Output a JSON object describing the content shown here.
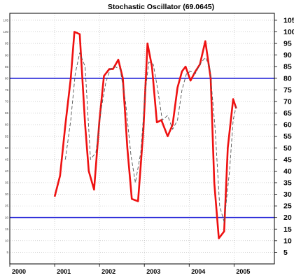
{
  "chart_data": {
    "type": "line",
    "title": "Stochastic Oscillator (69.0645)",
    "xlim": [
      2000.0,
      2005.9
    ],
    "ylim": [
      0,
      108
    ],
    "yticks": [
      5,
      10,
      15,
      20,
      25,
      30,
      35,
      40,
      45,
      50,
      55,
      60,
      65,
      70,
      75,
      80,
      85,
      90,
      95,
      100,
      105
    ],
    "xticks": [
      2000,
      2001,
      2002,
      2003,
      2004,
      2005
    ],
    "grid": true,
    "reference_lines": [
      {
        "value": 80,
        "color": "#1c1cd6"
      },
      {
        "value": 20,
        "color": "#1c1cd6"
      }
    ],
    "series": [
      {
        "style": "solid",
        "color": "#ee1111",
        "x": [
          2001.0,
          2001.12,
          2001.24,
          2001.36,
          2001.44,
          2001.56,
          2001.68,
          2001.76,
          2001.88,
          2002.0,
          2002.1,
          2002.22,
          2002.3,
          2002.42,
          2002.52,
          2002.62,
          2002.72,
          2002.86,
          2002.98,
          2003.07,
          2003.17,
          2003.28,
          2003.38,
          2003.52,
          2003.63,
          2003.74,
          2003.84,
          2003.92,
          2004.03,
          2004.14,
          2004.24,
          2004.36,
          2004.48,
          2004.56,
          2004.66,
          2004.78,
          2004.86,
          2004.98,
          2005.05
        ],
        "y": [
          29,
          38,
          60,
          80,
          100,
          99,
          60,
          40,
          32,
          62,
          81,
          84,
          84,
          88,
          80,
          50,
          28,
          27,
          58,
          95,
          85,
          61,
          62,
          55,
          60,
          76,
          83,
          85,
          79,
          83,
          86,
          96,
          80,
          35,
          11,
          14,
          50,
          71,
          67
        ]
      },
      {
        "style": "dashed",
        "color": "#555555",
        "x": [
          2001.24,
          2001.36,
          2001.46,
          2001.56,
          2001.68,
          2001.8,
          2001.92,
          2002.04,
          2002.14,
          2002.24,
          2002.34,
          2002.46,
          2002.58,
          2002.7,
          2002.8,
          2002.92,
          2003.02,
          2003.1,
          2003.2,
          2003.3,
          2003.4,
          2003.52,
          2003.63,
          2003.74,
          2003.84,
          2003.94,
          2004.03,
          2004.14,
          2004.24,
          2004.36,
          2004.46,
          2004.58,
          2004.68,
          2004.78,
          2004.9,
          2004.98,
          2005.05
        ],
        "y": [
          45,
          62,
          82,
          91,
          85,
          45,
          48,
          67,
          78,
          84,
          85,
          84,
          70,
          47,
          35,
          48,
          74,
          87,
          86,
          75,
          62,
          64,
          58,
          62,
          75,
          82,
          83,
          82,
          86,
          89,
          85,
          58,
          25,
          18,
          40,
          62,
          68
        ]
      }
    ]
  }
}
